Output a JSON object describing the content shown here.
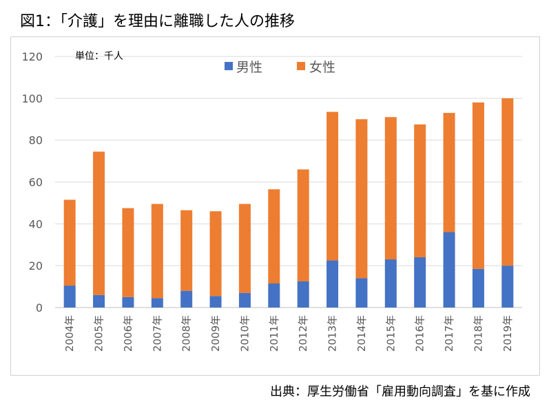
{
  "figure": {
    "title": "図1：「介護」を理由に離職した人の推移",
    "source": "出典：厚生労働省「雇用動向調査」を基に作成"
  },
  "chart_data": {
    "type": "bar",
    "stacked": true,
    "unit_label": "単位：千人",
    "categories": [
      "2004年",
      "2005年",
      "2006年",
      "2007年",
      "2008年",
      "2009年",
      "2010年",
      "2011年",
      "2012年",
      "2013年",
      "2014年",
      "2015年",
      "2016年",
      "2017年",
      "2018年",
      "2019年"
    ],
    "series": [
      {
        "name": "男性",
        "color": "#4472c4",
        "values": [
          10.5,
          6,
          5,
          4.5,
          8,
          5.5,
          7,
          11.5,
          12.5,
          22.5,
          14,
          23,
          24,
          36,
          18.5,
          20
        ]
      },
      {
        "name": "女性",
        "color": "#ed7d31",
        "values": [
          41,
          68.5,
          42.5,
          45,
          38.5,
          40.5,
          42.5,
          45,
          53.5,
          71,
          76,
          68,
          63.5,
          57,
          79.5,
          80
        ]
      }
    ],
    "ylim": [
      0,
      120
    ],
    "yticks": [
      "0",
      "20",
      "40",
      "60",
      "80",
      "100",
      "120"
    ],
    "grid": true,
    "legend_position": "top-center"
  }
}
